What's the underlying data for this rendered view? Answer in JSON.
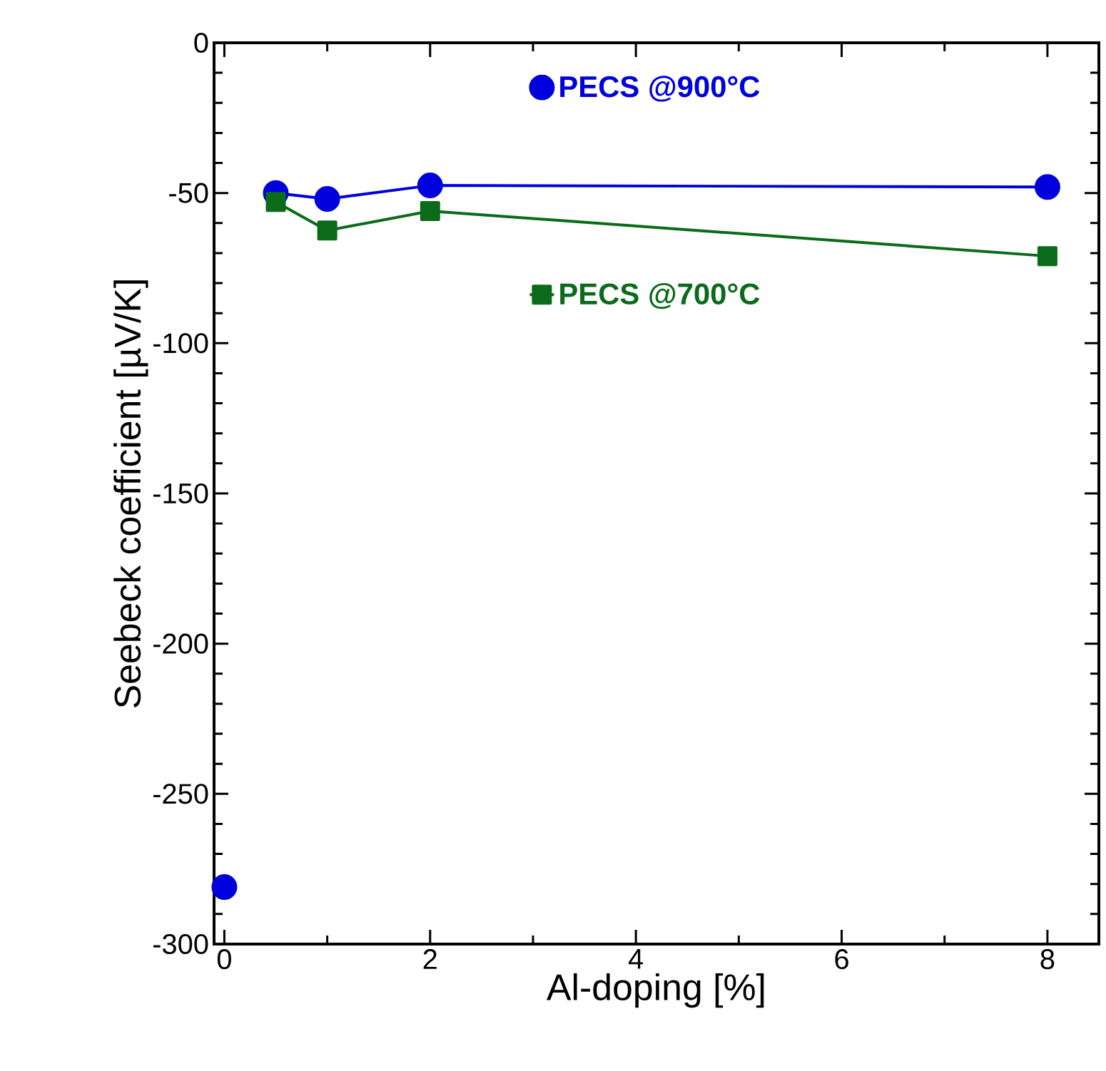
{
  "chart_data": {
    "type": "line",
    "xlabel": "Al-doping [%]",
    "ylabel": "Seebeck coefficient [µV/K]",
    "xlim": [
      -0.1,
      8.5
    ],
    "ylim": [
      -300,
      0
    ],
    "xticks": [
      0,
      2,
      4,
      6,
      8
    ],
    "yticks": [
      -300,
      -250,
      -200,
      -150,
      -100,
      -50,
      0
    ],
    "grid": false,
    "legend": "top right",
    "series": [
      {
        "name": "PECS @900°C",
        "color": "#0000dd",
        "marker": "circle",
        "x": [
          0.5,
          1,
          2,
          8
        ],
        "values": [
          -50,
          -52,
          -47.5,
          -48
        ]
      },
      {
        "type": "scatter",
        "color": "#0000dd",
        "marker": "circle",
        "x": [
          0
        ],
        "values": [
          -281
        ]
      },
      {
        "name": "PECS @700°C",
        "color": "#0b6b1a",
        "marker": "square",
        "x": [
          0.5,
          1,
          2,
          8
        ],
        "values": [
          -53,
          -62.5,
          -56,
          -71
        ]
      }
    ]
  }
}
